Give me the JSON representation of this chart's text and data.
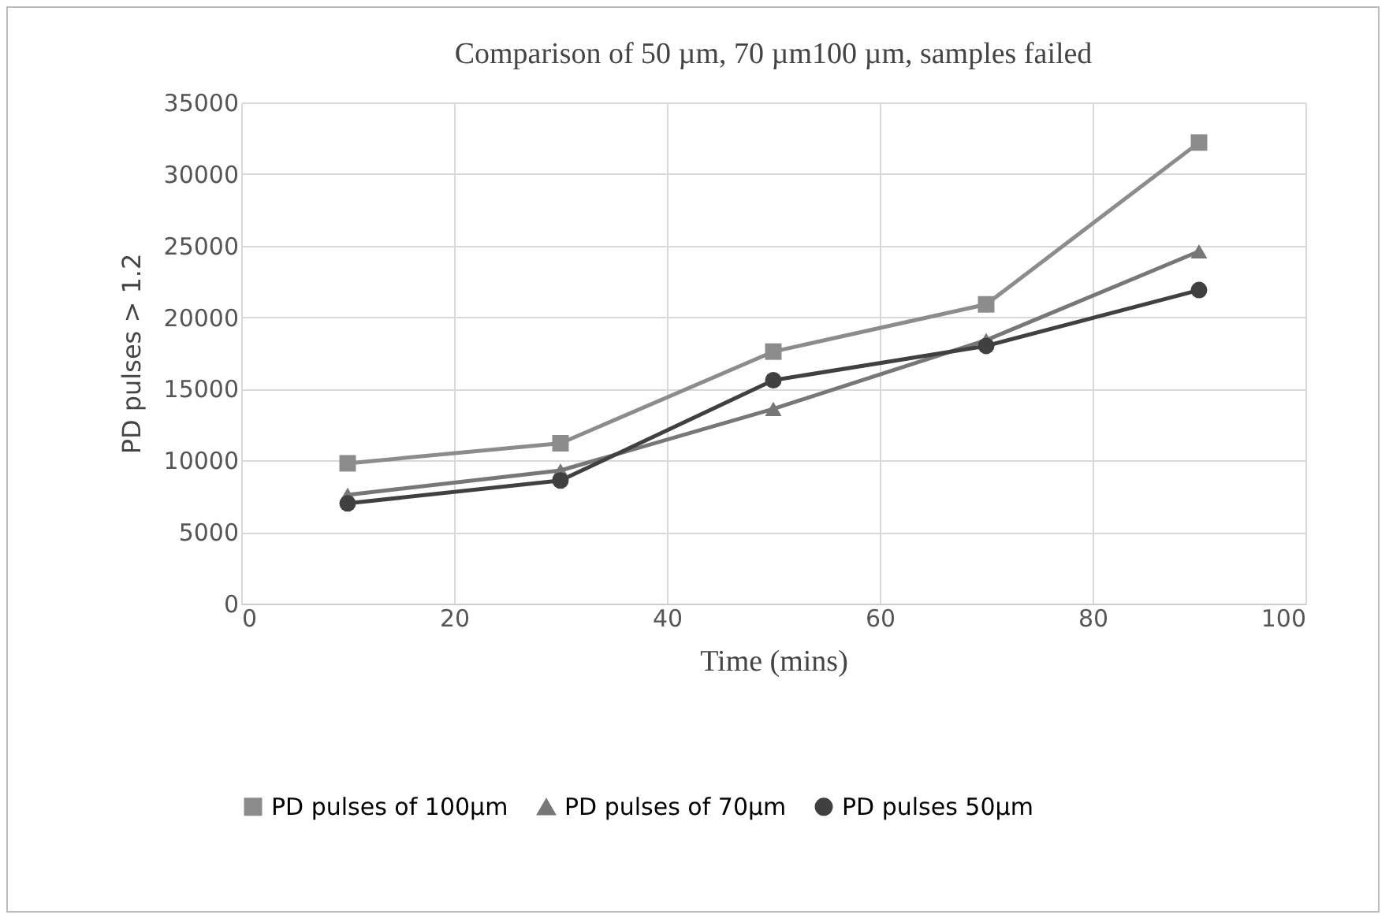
{
  "chart_data": {
    "type": "line",
    "title": "Comparison of 50 µm, 70 µm100 µm, samples failed",
    "xlabel": "Time (mins)",
    "ylabel": "PD pulses > 1.2",
    "x": [
      10,
      30,
      50,
      70,
      90
    ],
    "series": [
      {
        "name": "PD pulses of 100µm",
        "color": "#8c8c8c",
        "marker": "square",
        "values": [
          9800,
          11200,
          17600,
          20900,
          32200
        ]
      },
      {
        "name": "PD pulses of 70µm",
        "color": "#777777",
        "marker": "triangle",
        "values": [
          7600,
          9300,
          13600,
          18400,
          24600
        ]
      },
      {
        "name": "PD pulses 50µm",
        "color": "#404040",
        "marker": "circle",
        "values": [
          7000,
          8600,
          15600,
          18000,
          21900
        ]
      }
    ],
    "xlim": [
      0,
      100
    ],
    "xticks": [
      0,
      20,
      40,
      60,
      80,
      100
    ],
    "ylim": [
      0,
      35000
    ],
    "yticks": [
      0,
      5000,
      10000,
      15000,
      20000,
      25000,
      30000,
      35000
    ],
    "grid": true,
    "legend": "bottom",
    "line_style": "solid"
  }
}
